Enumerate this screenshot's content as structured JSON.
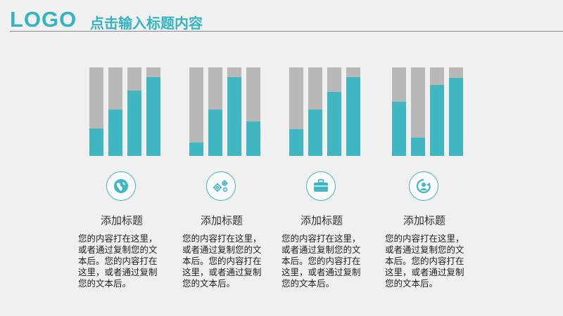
{
  "header": {
    "logo": "LOGO",
    "title": "点击输入标题内容"
  },
  "accent_color": "#3fb6c1",
  "groups": [
    {
      "label": "添加标题",
      "icon": "globe-icon",
      "bars": [
        0.31,
        0.52,
        0.74,
        0.89
      ],
      "text": "您的内容打在这里，或者通过复制您的文本后。您的内容打在这里，或者通过复制您的文本后。"
    },
    {
      "label": "添加标题",
      "icon": "gears-icon",
      "bars": [
        0.15,
        0.52,
        0.89,
        0.39
      ],
      "text": "您的内容打在这里，或者通过复制您的文本后。您的内容打在这里，或者通过复制您的文本后。"
    },
    {
      "label": "添加标题",
      "icon": "briefcase-icon",
      "bars": [
        0.3,
        0.52,
        0.72,
        0.89
      ],
      "text": "您的内容打在这里，或者通过复制您的文本后。您的内容打在这里，或者通过复制您的文本后。"
    },
    {
      "label": "添加标题",
      "icon": "user-refresh-icon",
      "bars": [
        0.61,
        0.21,
        0.8,
        0.88
      ],
      "text": "您的内容打在这里，或者通过复制您的文本后。您的内容打在这里，或者通过复制您的文本后。"
    }
  ]
}
